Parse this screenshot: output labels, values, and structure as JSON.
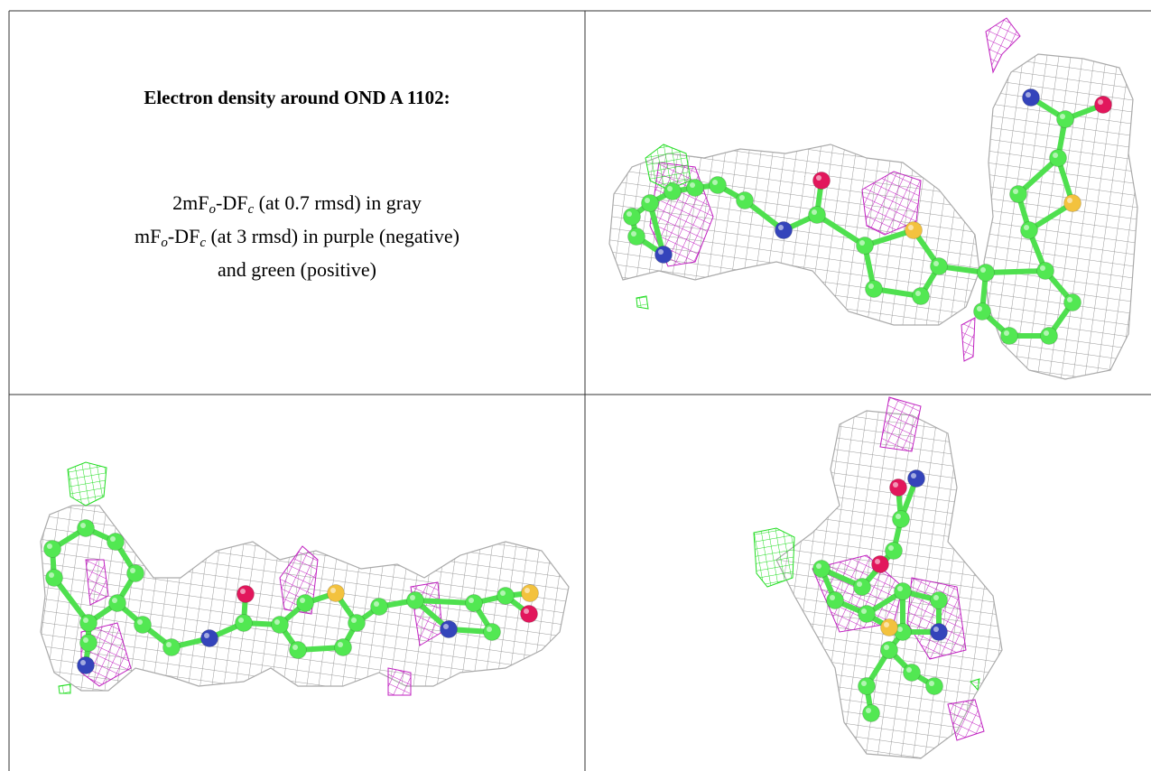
{
  "title": "Electron density around OND A 1102:",
  "legend": [
    [
      "2mF",
      "o",
      "-DF",
      "c",
      " (at 0.7 rmsd) in gray"
    ],
    [
      "mF",
      "o",
      "-DF",
      "c",
      " (at 3 rmsd) in purple (negative)"
    ],
    [
      "and green (positive)"
    ]
  ]
}
